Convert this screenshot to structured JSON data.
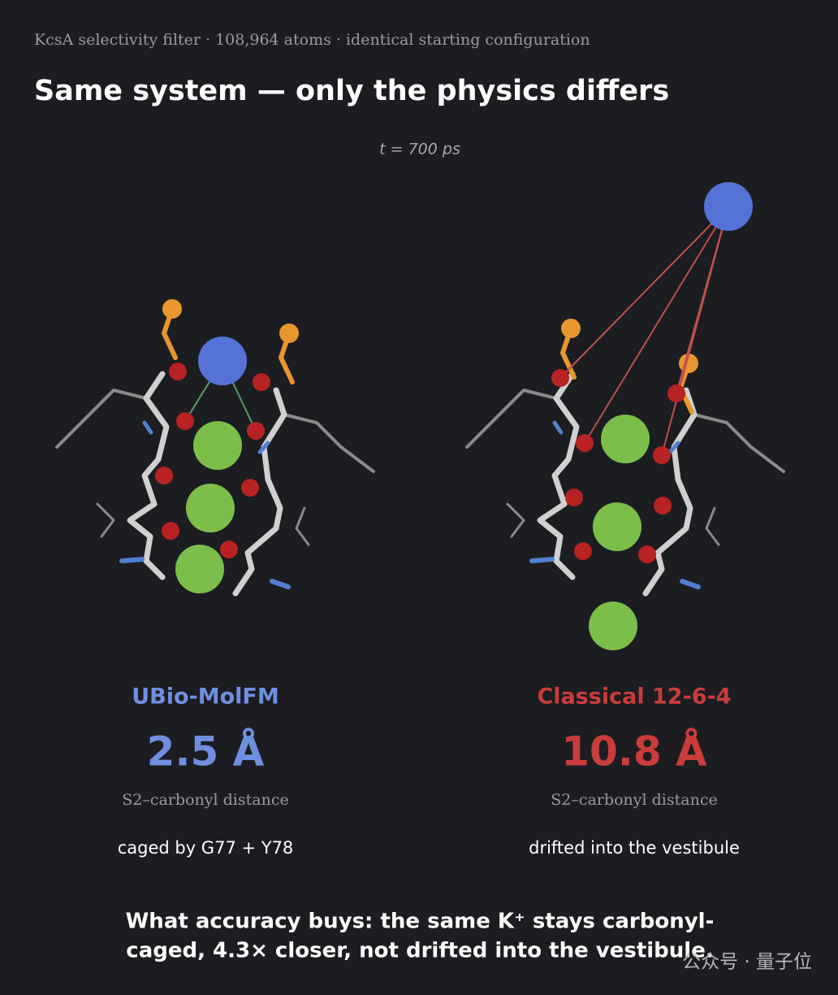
{
  "header": {
    "subtitle": "KcsA selectivity filter · 108,964 atoms · identical starting configuration",
    "title": "Same system — only the physics differs",
    "time": "t = 700 ps"
  },
  "panels": [
    {
      "name": "UBio-MolFM",
      "distance": "2.5 Å",
      "caption": "S2–carbonyl distance",
      "note": "caged by G77 + Y78"
    },
    {
      "name": "Classical 12-6-4",
      "distance": "10.8 Å",
      "caption": "S2–carbonyl distance",
      "note": "drifted into the vestibule"
    }
  ],
  "footer": {
    "lines": [
      "What accuracy buys: the same K⁺ stays carbonyl-",
      "caged, 4.3× closer, not drifted into the vestibule."
    ]
  },
  "watermark": "公众号 · 量子位"
}
